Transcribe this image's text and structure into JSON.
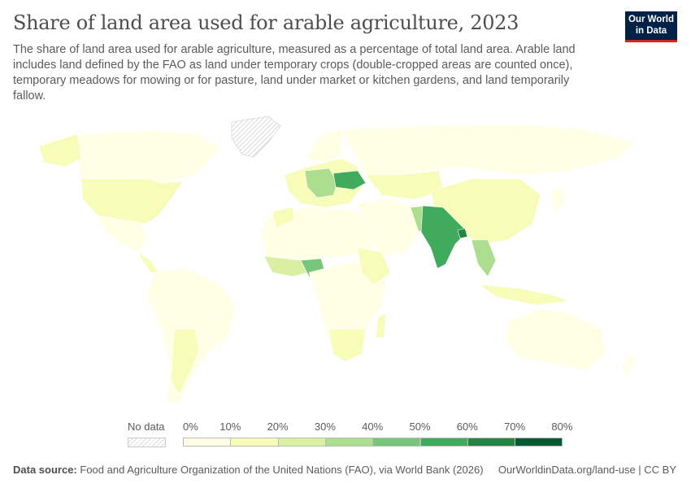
{
  "header": {
    "title": "Share of land area used for arable agriculture, 2023",
    "subtitle": "The share of land area used for arable agriculture, measured as a percentage of total land area. Arable land includes land defined by the FAO as land under temporary crops (double-cropped areas are counted once), temporary meadows for mowing or for pasture, land under market or kitchen gardens, and land temporarily fallow.",
    "logo": "Our World in Data"
  },
  "legend": {
    "no_data_label": "No data",
    "ticks": [
      "0%",
      "10%",
      "20%",
      "30%",
      "40%",
      "50%",
      "60%",
      "70%",
      "80%"
    ],
    "colors": [
      "#ffffe5",
      "#f7fcb9",
      "#d9f0a3",
      "#addd8e",
      "#78c679",
      "#41ab5d",
      "#238443",
      "#005a32"
    ]
  },
  "footer": {
    "source_label": "Data source:",
    "source": "Food and Agriculture Organization of the United Nations (FAO), via World Bank (2026)",
    "link": "OurWorldinData.org/land-use | CC BY"
  }
}
